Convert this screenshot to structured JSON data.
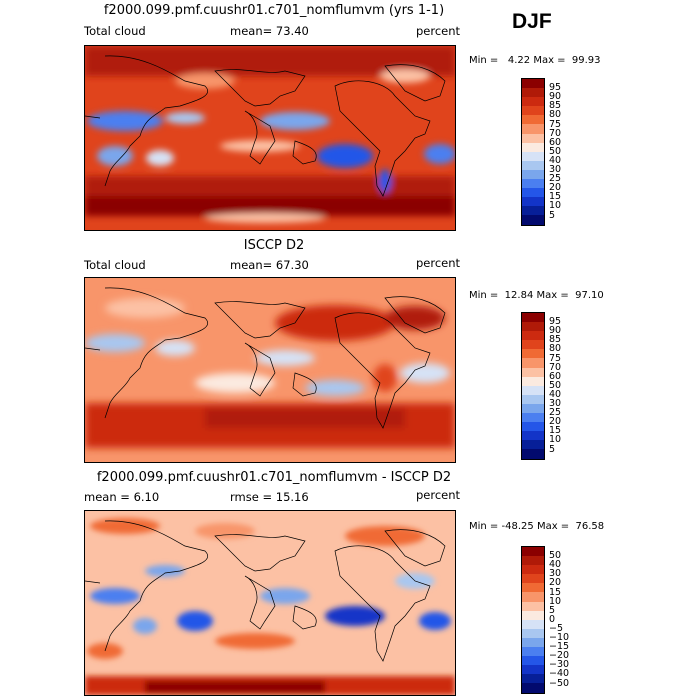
{
  "season": "DJF",
  "panels": [
    {
      "title": "f2000.099.pmf.cuushr01.c701_nomflumvm (yrs 1-1)",
      "left_label": "Total cloud",
      "stat_label": "mean=",
      "stat_value": "73.40",
      "units": "percent",
      "min_label": "Min =",
      "min_value": "4.22",
      "max_label": "Max =",
      "max_value": "99.93",
      "colorbar_labels": [
        "95",
        "90",
        "85",
        "80",
        "75",
        "70",
        "60",
        "50",
        "40",
        "30",
        "25",
        "20",
        "15",
        "10",
        "5"
      ]
    },
    {
      "title": "ISCCP D2",
      "left_label": "Total cloud",
      "stat_label": "mean=",
      "stat_value": "67.30",
      "units": "percent",
      "min_label": "Min =",
      "min_value": "12.84",
      "max_label": "Max =",
      "max_value": "97.10",
      "colorbar_labels": [
        "95",
        "90",
        "85",
        "80",
        "75",
        "70",
        "60",
        "50",
        "40",
        "30",
        "25",
        "20",
        "15",
        "10",
        "5"
      ]
    },
    {
      "title": "f2000.099.pmf.cuushr01.c701_nomflumvm - ISCCP D2",
      "left_label": "mean =",
      "left_value": "6.10",
      "stat_label": "rmse =",
      "stat_value": "15.16",
      "units": "percent",
      "min_label": "Min =",
      "min_value": "-48.25",
      "max_label": "Max =",
      "max_value": "76.58",
      "colorbar_labels": [
        "50",
        "40",
        "30",
        "20",
        "15",
        "10",
        "5",
        "0",
        "−5",
        "−10",
        "−15",
        "−20",
        "−30",
        "−40",
        "−50"
      ]
    }
  ],
  "colors": {
    "scale": [
      "#8b0000",
      "#b01a08",
      "#cc2a10",
      "#e0441c",
      "#f06a34",
      "#f8956a",
      "#fcc1a4",
      "#fbeae0",
      "#d6e2f6",
      "#a9c7f0",
      "#7aa6ec",
      "#4b7ff0",
      "#2456e8",
      "#1334c8",
      "#071f98",
      "#020a6e"
    ]
  },
  "chart_data": [
    {
      "type": "heatmap",
      "title": "f2000.099.pmf.cuushr01.c701_nomflumvm (yrs 1-1)",
      "variable": "Total cloud",
      "units": "percent",
      "mean": 73.4,
      "min": 4.22,
      "max": 99.93,
      "levels": [
        5,
        10,
        15,
        20,
        25,
        30,
        40,
        50,
        60,
        70,
        75,
        80,
        85,
        90,
        95
      ]
    },
    {
      "type": "heatmap",
      "title": "ISCCP D2",
      "variable": "Total cloud",
      "units": "percent",
      "mean": 67.3,
      "min": 12.84,
      "max": 97.1,
      "levels": [
        5,
        10,
        15,
        20,
        25,
        30,
        40,
        50,
        60,
        70,
        75,
        80,
        85,
        90,
        95
      ]
    },
    {
      "type": "heatmap",
      "title": "f2000.099.pmf.cuushr01.c701_nomflumvm - ISCCP D2",
      "units": "percent",
      "mean": 6.1,
      "rmse": 15.16,
      "min": -48.25,
      "max": 76.58,
      "levels": [
        -50,
        -40,
        -30,
        -20,
        -15,
        -10,
        -5,
        0,
        5,
        10,
        15,
        20,
        30,
        40,
        50
      ]
    }
  ]
}
